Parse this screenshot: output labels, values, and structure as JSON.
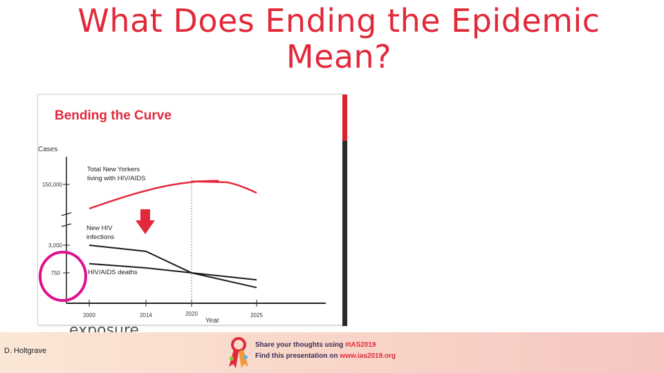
{
  "slide": {
    "title": "What Does Ending the Epidemic Mean?",
    "body_text": "exposure.",
    "author": "D. Holtgrave"
  },
  "figure": {
    "heading": "Bending the Curve",
    "heading_color": "#e2293a",
    "highlight_circle_color": "#e0108f",
    "arrow_color": "#e2293a",
    "scrollbar_color": "#d8232f"
  },
  "chart_data": {
    "type": "line",
    "title": "Bending the Curve",
    "ylabel": "Cases",
    "xlabel": "Year",
    "x_ticks": [
      "2000",
      "2014",
      "2020",
      "2025"
    ],
    "y_ticks": [
      "150,000",
      "3,000",
      "750"
    ],
    "series": [
      {
        "name": "Total New Yorkers living with HIV/AIDS",
        "label_lines": [
          "Total New Yorkers",
          "living with HIV/AIDS"
        ],
        "color": "#e2293a",
        "x": [
          2000,
          2014,
          2020,
          2025
        ],
        "y": [
          130000,
          149000,
          153000,
          143000
        ]
      },
      {
        "name": "New HIV infections",
        "label_lines": [
          "New HIV",
          "infections"
        ],
        "color": "#1a1a1a",
        "x": [
          2000,
          2014,
          2020,
          2025
        ],
        "y": [
          3000,
          2500,
          750,
          350
        ]
      },
      {
        "name": "HIV/AIDS deaths",
        "label_lines": [
          "HIV/AIDS deaths"
        ],
        "color": "#1a1a1a",
        "x": [
          2000,
          2014,
          2020,
          2025
        ],
        "y": [
          1500,
          1150,
          750,
          560
        ]
      }
    ]
  },
  "footer": {
    "share_prefix": "Share your thoughts using ",
    "share_tag": "#IAS2019",
    "find_prefix": "Find this presentation on ",
    "find_url": "www.ias2019.org",
    "text_color": "#3d2c55",
    "accent_color": "#e2293a"
  }
}
